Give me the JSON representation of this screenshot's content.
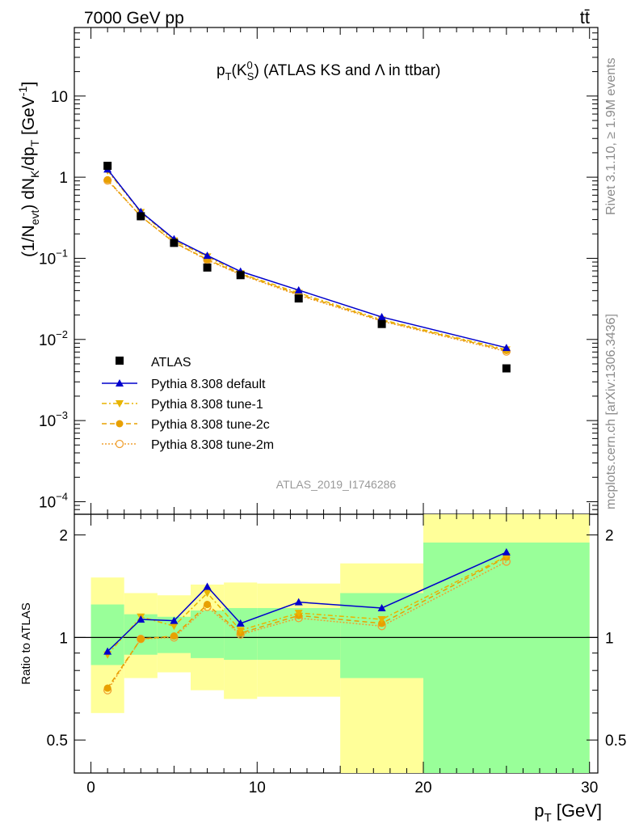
{
  "header": {
    "left": "7000 GeV pp",
    "right": "tt̄"
  },
  "side_labels": {
    "rivet": "Rivet 3.1.10, ≥ 1.9M events",
    "mcplots": "mcplots.cern.ch [arXiv:1306.3436]"
  },
  "watermark": "ATLAS_2019_I1746286",
  "chart_data": {
    "type": "line",
    "title": {
      "p": "p",
      "T": "T",
      "open": "(K",
      "zero": "0",
      "S": "S",
      "close": ")",
      "rest": " (ATLAS KS and Λ in ttbar)"
    },
    "xlabel": "p_T [GeV]",
    "ylabel_main": "(1/N_evt) dN_K/dp_T [GeV^-1]",
    "ylabel_ratio": "Ratio to ATLAS",
    "xlim": [
      -1,
      30.5
    ],
    "ylim_main": [
      7e-05,
      70
    ],
    "yscale_main": "log",
    "ylim_ratio": [
      0.4,
      2.3
    ],
    "yscale_ratio": "log",
    "x_ticks": [
      "0",
      "10",
      "20",
      "30"
    ],
    "y_ticks_main": [
      {
        "value": 10,
        "mantissa": "10",
        "exp": ""
      },
      {
        "value": 1,
        "mantissa": "1",
        "exp": ""
      },
      {
        "value": 0.1,
        "mantissa": "10",
        "exp": "−1"
      },
      {
        "value": 0.01,
        "mantissa": "10",
        "exp": "−2"
      },
      {
        "value": 0.001,
        "mantissa": "10",
        "exp": "−3"
      },
      {
        "value": 0.0001,
        "mantissa": "10",
        "exp": "−4"
      }
    ],
    "y_ticks_ratio": [
      {
        "value": 0.5,
        "label": "0.5"
      },
      {
        "value": 1,
        "label": "1"
      },
      {
        "value": 2,
        "label": "2"
      }
    ],
    "bins": [
      {
        "lo": 0,
        "hi": 2,
        "x": 1
      },
      {
        "lo": 2,
        "hi": 4,
        "x": 3
      },
      {
        "lo": 4,
        "hi": 6,
        "x": 5
      },
      {
        "lo": 6,
        "hi": 8,
        "x": 7
      },
      {
        "lo": 8,
        "hi": 10,
        "x": 9
      },
      {
        "lo": 10,
        "hi": 15,
        "x": 12.5
      },
      {
        "lo": 15,
        "hi": 20,
        "x": 17.5
      },
      {
        "lo": 20,
        "hi": 30,
        "x": 25
      }
    ],
    "data": {
      "name": "ATLAS",
      "values": [
        1.38,
        0.33,
        0.155,
        0.077,
        0.062,
        0.032,
        0.0155,
        0.0044
      ]
    },
    "band_yellow": [
      [
        0.6,
        1.5
      ],
      [
        0.76,
        1.35
      ],
      [
        0.79,
        1.33
      ],
      [
        0.7,
        1.43
      ],
      [
        0.66,
        1.45
      ],
      [
        0.67,
        1.44
      ],
      [
        0.38,
        1.65
      ],
      [
        0.35,
        2.3
      ]
    ],
    "band_green": [
      [
        0.83,
        1.25
      ],
      [
        0.89,
        1.17
      ],
      [
        0.9,
        1.15
      ],
      [
        0.87,
        1.2
      ],
      [
        0.86,
        1.22
      ],
      [
        0.86,
        1.22
      ],
      [
        0.76,
        1.35
      ],
      [
        0.35,
        1.9
      ]
    ],
    "series": [
      {
        "name": "Pythia 8.308 default",
        "color": "#0000cc",
        "dash": "",
        "marker": "triangle-up",
        "values": [
          1.25,
          0.375,
          0.173,
          0.108,
          0.069,
          0.0405,
          0.0189,
          0.0079
        ],
        "ratio": [
          0.91,
          1.13,
          1.12,
          1.41,
          1.1,
          1.27,
          1.22,
          1.78
        ]
      },
      {
        "name": "Pythia 8.308 tune-1",
        "color": "#e8b400",
        "dash": "6,3,2,3",
        "marker": "triangle-down",
        "values": [
          1.2,
          0.37,
          0.165,
          0.105,
          0.065,
          0.0375,
          0.0175,
          0.0075
        ],
        "ratio": [
          0.89,
          1.15,
          1.08,
          1.35,
          1.05,
          1.18,
          1.13,
          1.73
        ]
      },
      {
        "name": "Pythia 8.308 tune-2c",
        "color": "#e8a000",
        "dash": "6,4",
        "marker": "circle",
        "values": [
          0.93,
          0.33,
          0.157,
          0.097,
          0.064,
          0.036,
          0.0171,
          0.0073
        ],
        "ratio": [
          0.71,
          0.99,
          1.01,
          1.25,
          1.03,
          1.16,
          1.1,
          1.72
        ]
      },
      {
        "name": "Pythia 8.308 tune-2m",
        "color": "#f0a030",
        "dash": "2,2",
        "marker": "circle-open",
        "values": [
          0.91,
          0.33,
          0.156,
          0.095,
          0.063,
          0.035,
          0.0168,
          0.0071
        ],
        "ratio": [
          0.7,
          0.99,
          1.0,
          1.23,
          1.02,
          1.14,
          1.08,
          1.67
        ]
      }
    ],
    "legend_placement": "bottom-left of main panel",
    "grid": false
  }
}
